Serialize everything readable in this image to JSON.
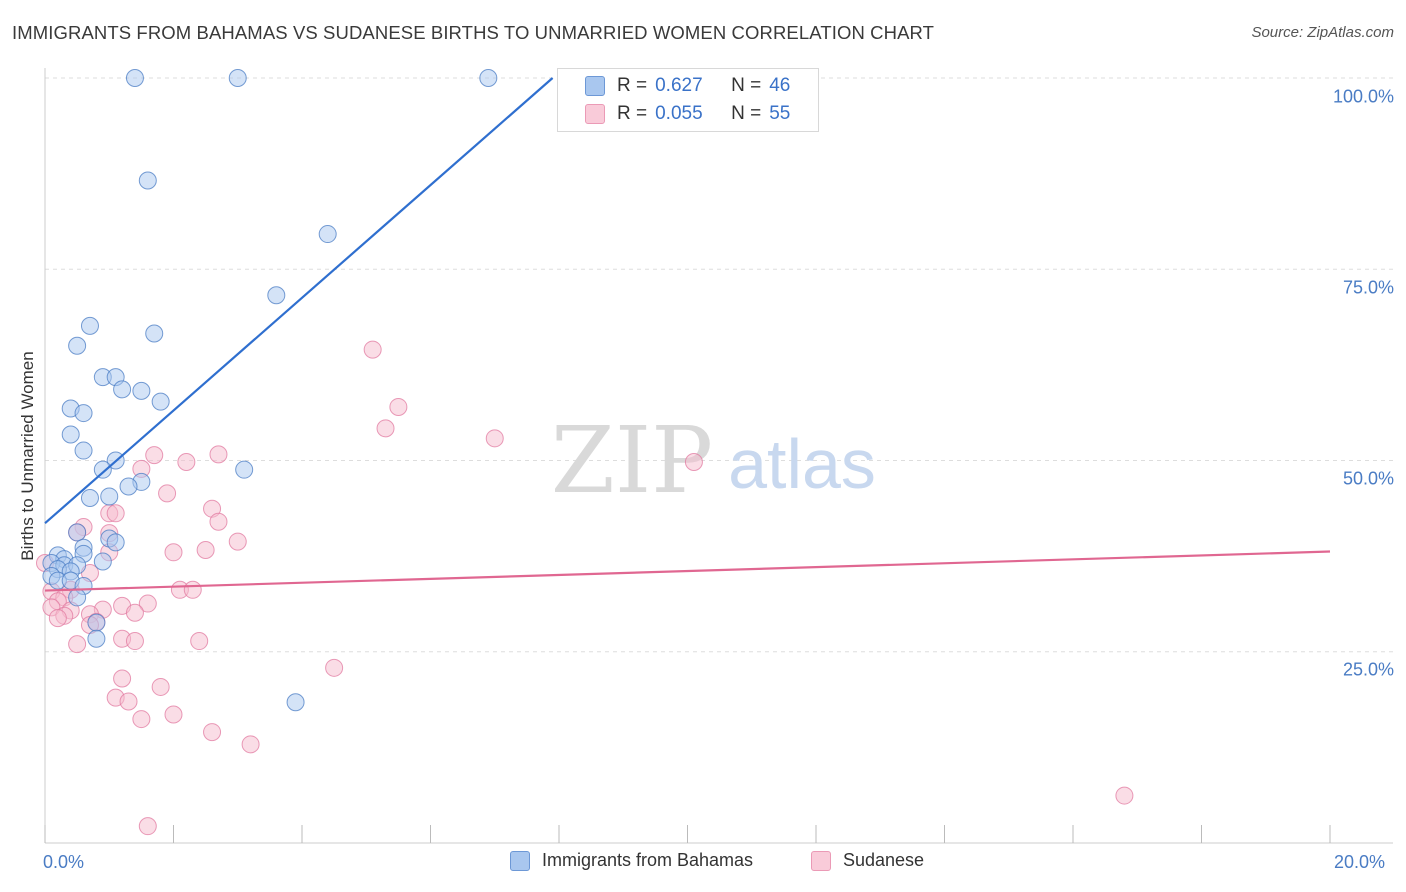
{
  "title": "IMMIGRANTS FROM BAHAMAS VS SUDANESE BIRTHS TO UNMARRIED WOMEN CORRELATION CHART",
  "source": "Source: ZipAtlas.com",
  "watermark": {
    "zip": "ZIP",
    "atlas": "atlas"
  },
  "legend": {
    "r_label": "R =",
    "n_label": "N =",
    "rows": [
      {
        "r": "0.627",
        "n": "46"
      },
      {
        "r": "0.055",
        "n": "55"
      }
    ]
  },
  "colors": {
    "blue_fill": "#a9c7ef",
    "blue_stroke": "#4a7cc4",
    "blue_line": "#2f6fcf",
    "pink_fill": "#f6bccd",
    "pink_stroke": "#e27aa0",
    "pink_line": "#e06791",
    "tick_text": "#4a7cc4"
  },
  "chart_data": {
    "type": "scatter",
    "title": "IMMIGRANTS FROM BAHAMAS VS SUDANESE BIRTHS TO UNMARRIED WOMEN CORRELATION CHART",
    "xlabel": "",
    "ylabel": "Births to Unmarried Women",
    "xlim": [
      0,
      20
    ],
    "ylim": [
      0,
      100
    ],
    "x_tick_labels": [
      "0.0%",
      "20.0%"
    ],
    "y_ticks": [
      25,
      50,
      75,
      100
    ],
    "y_tick_labels": [
      "25.0%",
      "50.0%",
      "75.0%",
      "100.0%"
    ],
    "grid": true,
    "legend_position": "top-center",
    "series": [
      {
        "name": "Immigrants from Bahamas",
        "color": "#a9c7ef",
        "R": 0.627,
        "N": 46,
        "trend": {
          "x": [
            0,
            7.9
          ],
          "y": [
            41.8,
            100
          ]
        },
        "points": [
          [
            1.4,
            100
          ],
          [
            3.0,
            100
          ],
          [
            6.9,
            100
          ],
          [
            1.6,
            86.6
          ],
          [
            4.4,
            79.6
          ],
          [
            3.6,
            71.6
          ],
          [
            0.7,
            67.6
          ],
          [
            1.7,
            66.6
          ],
          [
            0.5,
            65.0
          ],
          [
            0.9,
            60.9
          ],
          [
            1.1,
            60.9
          ],
          [
            1.2,
            59.3
          ],
          [
            1.5,
            59.1
          ],
          [
            1.8,
            57.7
          ],
          [
            0.4,
            56.8
          ],
          [
            0.6,
            56.2
          ],
          [
            0.4,
            53.4
          ],
          [
            0.6,
            51.3
          ],
          [
            1.1,
            50.0
          ],
          [
            0.9,
            48.8
          ],
          [
            3.1,
            48.8
          ],
          [
            1.5,
            47.2
          ],
          [
            1.3,
            46.6
          ],
          [
            1.0,
            45.3
          ],
          [
            0.7,
            45.1
          ],
          [
            0.5,
            40.6
          ],
          [
            1.0,
            39.8
          ],
          [
            1.1,
            39.3
          ],
          [
            0.6,
            38.6
          ],
          [
            0.6,
            37.8
          ],
          [
            0.9,
            36.8
          ],
          [
            0.2,
            37.6
          ],
          [
            0.3,
            37.1
          ],
          [
            0.1,
            36.6
          ],
          [
            0.3,
            36.3
          ],
          [
            0.5,
            36.3
          ],
          [
            0.2,
            35.8
          ],
          [
            0.4,
            35.5
          ],
          [
            0.1,
            34.9
          ],
          [
            0.2,
            34.3
          ],
          [
            0.4,
            34.3
          ],
          [
            0.6,
            33.6
          ],
          [
            0.5,
            32.1
          ],
          [
            0.8,
            28.8
          ],
          [
            0.8,
            26.7
          ],
          [
            3.9,
            18.4
          ]
        ]
      },
      {
        "name": "Sudanese",
        "color": "#f6bccd",
        "R": 0.055,
        "N": 55,
        "trend": {
          "x": [
            0,
            20
          ],
          "y": [
            33.0,
            38.1
          ]
        },
        "points": [
          [
            5.1,
            64.5
          ],
          [
            5.5,
            57.0
          ],
          [
            5.3,
            54.2
          ],
          [
            7.0,
            52.9
          ],
          [
            2.7,
            50.8
          ],
          [
            1.7,
            50.7
          ],
          [
            2.2,
            49.8
          ],
          [
            10.1,
            49.8
          ],
          [
            1.5,
            48.9
          ],
          [
            1.9,
            45.7
          ],
          [
            2.6,
            43.7
          ],
          [
            1.0,
            43.1
          ],
          [
            1.1,
            43.1
          ],
          [
            2.7,
            42.0
          ],
          [
            0.6,
            41.3
          ],
          [
            0.5,
            40.6
          ],
          [
            1.0,
            40.5
          ],
          [
            3.0,
            39.4
          ],
          [
            2.5,
            38.3
          ],
          [
            2.0,
            38.0
          ],
          [
            1.0,
            38.0
          ],
          [
            0.7,
            35.3
          ],
          [
            2.1,
            33.1
          ],
          [
            2.3,
            33.1
          ],
          [
            0.1,
            32.9
          ],
          [
            0.4,
            33.1
          ],
          [
            0.3,
            32.1
          ],
          [
            0.2,
            31.6
          ],
          [
            1.6,
            31.3
          ],
          [
            1.2,
            31.0
          ],
          [
            0.1,
            30.8
          ],
          [
            0.4,
            30.4
          ],
          [
            0.9,
            30.5
          ],
          [
            1.4,
            30.1
          ],
          [
            0.7,
            29.9
          ],
          [
            0.3,
            29.7
          ],
          [
            0.2,
            29.4
          ],
          [
            0.8,
            28.9
          ],
          [
            0.7,
            28.5
          ],
          [
            1.2,
            26.7
          ],
          [
            1.4,
            26.4
          ],
          [
            2.4,
            26.4
          ],
          [
            0.5,
            26.0
          ],
          [
            4.5,
            22.9
          ],
          [
            1.2,
            21.5
          ],
          [
            1.8,
            20.4
          ],
          [
            1.1,
            19.0
          ],
          [
            1.3,
            18.5
          ],
          [
            2.0,
            16.8
          ],
          [
            1.5,
            16.2
          ],
          [
            2.6,
            14.5
          ],
          [
            3.2,
            12.9
          ],
          [
            16.8,
            6.2
          ],
          [
            1.6,
            2.2
          ],
          [
            0.0,
            36.6
          ]
        ]
      }
    ]
  }
}
